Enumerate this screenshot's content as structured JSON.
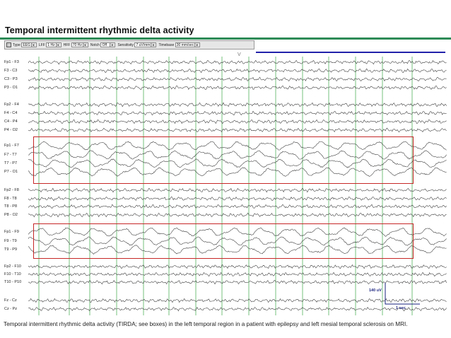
{
  "title": "Temporal intermittent rhythmic delta activity",
  "toolbar": {
    "type_label": "Type",
    "type_value": "EEG",
    "lff_label": "LFF",
    "lff_value": "1 Hz",
    "hff_label": "HFF",
    "hff_value": "70 Hz",
    "notch_label": "Notch",
    "notch_value": "Off",
    "sensitivity_label": "Sensitivity",
    "sensitivity_value": "7 uV/mm",
    "timebase_label": "Timebase",
    "timebase_value": "30 mm/sec"
  },
  "marker": "V",
  "channels": [
    "Fp1 - F3",
    "F3 - C3",
    "C3 - P3",
    "P3 - O1",
    "Fp2 - F4",
    "F4 - C4",
    "C4 - P4",
    "P4 - O2",
    "Fp1 - F7",
    "F7 - T7",
    "T7 - P7",
    "P7 - O1",
    "Fp2 - F8",
    "F8 - T8",
    "T8 - P8",
    "P8 - O2",
    "Fp1 - F9",
    "F9 - T9",
    "T9 - P9",
    "Fp2 - F10",
    "F10 - T10",
    "T10 - P10",
    "Fz - Cz",
    "Cz - Pz"
  ],
  "calibration": {
    "amplitude": "140 uV",
    "time": "1 sec"
  },
  "caption": "Temporal intermittent rhythmic delta activity (TIRDA; see boxes) in the left temporal region in a patient with epilepsy and left mesial temporal sclerosis on MRI.",
  "colors": {
    "accent_rule": "#2e8b57",
    "box": "#c62828",
    "grid": "#3aa845",
    "trace": "#333333",
    "top_bar": "#2222aa"
  }
}
